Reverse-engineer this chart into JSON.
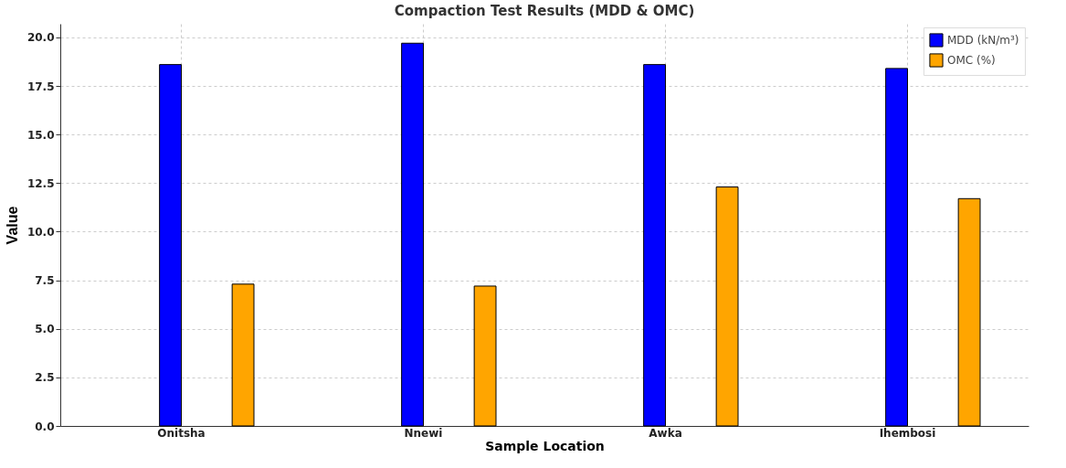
{
  "chart_data": {
    "type": "bar",
    "title": "Compaction Test Results (MDD & OMC)",
    "xlabel": "Sample Location",
    "ylabel": "Value",
    "categories": [
      "Onitsha",
      "Nnewi",
      "Awka",
      "Ihembosi"
    ],
    "series": [
      {
        "name": "MDD (kN/m³)",
        "color": "#0000ff",
        "values": [
          18.6,
          19.7,
          18.6,
          18.4
        ]
      },
      {
        "name": "OMC (%)",
        "color": "#ffa500",
        "values": [
          7.3,
          7.2,
          12.3,
          11.7
        ]
      }
    ],
    "ylim": [
      0,
      20.7
    ],
    "yticks": [
      {
        "value": 0,
        "label": "0.0"
      },
      {
        "value": 2.5,
        "label": "2.5"
      },
      {
        "value": 5,
        "label": "5.0"
      },
      {
        "value": 7.5,
        "label": "7.5"
      },
      {
        "value": 10,
        "label": "10.0"
      },
      {
        "value": 12.5,
        "label": "12.5"
      },
      {
        "value": 15,
        "label": "15.0"
      },
      {
        "value": 17.5,
        "label": "17.5"
      },
      {
        "value": 20,
        "label": "20.0"
      }
    ],
    "grid": true,
    "legend": "top right"
  }
}
